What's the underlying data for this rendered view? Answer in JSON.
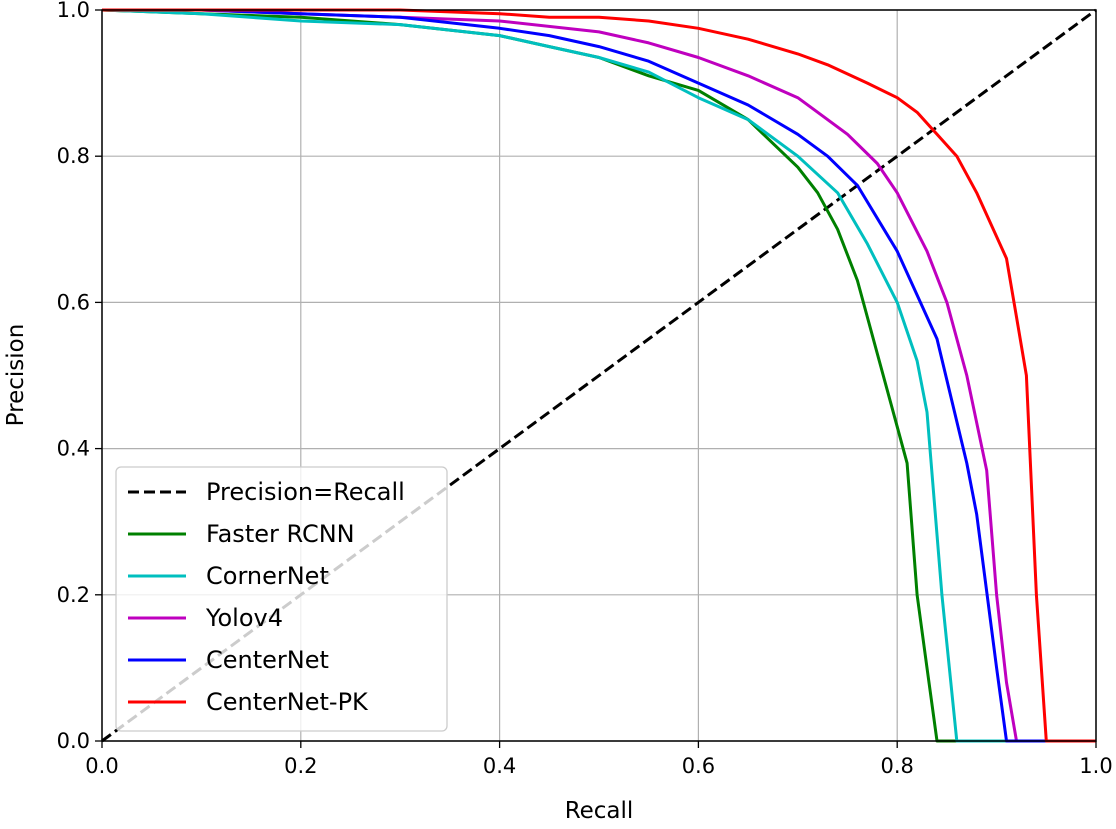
{
  "chart_data": {
    "type": "line",
    "xlabel": "Recall",
    "ylabel": "Precision",
    "xlim": [
      0.0,
      1.0
    ],
    "ylim": [
      0.0,
      1.0
    ],
    "xticks": [
      "0.0",
      "0.2",
      "0.4",
      "0.6",
      "0.8",
      "1.0"
    ],
    "yticks": [
      "0.0",
      "0.2",
      "0.4",
      "0.6",
      "0.8",
      "1.0"
    ],
    "grid": true,
    "legend_position": "lower-left",
    "series": [
      {
        "name": "Precision=Recall",
        "color": "#000000",
        "style": "dashed",
        "x": [
          0.0,
          1.0
        ],
        "y": [
          0.0,
          1.0
        ]
      },
      {
        "name": "Faster RCNN",
        "color": "#008000",
        "style": "solid",
        "x": [
          0.0,
          0.1,
          0.2,
          0.3,
          0.4,
          0.45,
          0.5,
          0.55,
          0.6,
          0.65,
          0.7,
          0.72,
          0.74,
          0.76,
          0.78,
          0.8,
          0.81,
          0.82,
          0.83,
          0.84,
          0.85,
          1.0
        ],
        "y": [
          1.0,
          0.995,
          0.99,
          0.98,
          0.965,
          0.95,
          0.935,
          0.91,
          0.89,
          0.85,
          0.785,
          0.75,
          0.7,
          0.63,
          0.53,
          0.43,
          0.38,
          0.2,
          0.1,
          0.0,
          0.0,
          0.0
        ]
      },
      {
        "name": "CornerNet",
        "color": "#00bfbf",
        "style": "solid",
        "x": [
          0.0,
          0.1,
          0.2,
          0.3,
          0.4,
          0.45,
          0.5,
          0.55,
          0.6,
          0.65,
          0.7,
          0.74,
          0.77,
          0.8,
          0.82,
          0.83,
          0.845,
          0.86,
          1.0
        ],
        "y": [
          1.0,
          0.995,
          0.985,
          0.98,
          0.965,
          0.95,
          0.935,
          0.915,
          0.88,
          0.85,
          0.8,
          0.75,
          0.68,
          0.6,
          0.52,
          0.45,
          0.2,
          0.0,
          0.0
        ]
      },
      {
        "name": "Yolov4",
        "color": "#bf00bf",
        "style": "solid",
        "x": [
          0.0,
          0.1,
          0.2,
          0.3,
          0.4,
          0.5,
          0.55,
          0.6,
          0.65,
          0.7,
          0.72,
          0.75,
          0.78,
          0.8,
          0.83,
          0.85,
          0.87,
          0.89,
          0.9,
          0.91,
          0.92,
          1.0
        ],
        "y": [
          1.0,
          1.0,
          0.995,
          0.99,
          0.985,
          0.97,
          0.955,
          0.935,
          0.91,
          0.88,
          0.86,
          0.83,
          0.79,
          0.75,
          0.67,
          0.6,
          0.5,
          0.37,
          0.2,
          0.08,
          0.0,
          0.0
        ]
      },
      {
        "name": "CenterNet",
        "color": "#0000ff",
        "style": "solid",
        "x": [
          0.0,
          0.1,
          0.2,
          0.3,
          0.4,
          0.45,
          0.5,
          0.55,
          0.6,
          0.65,
          0.7,
          0.73,
          0.76,
          0.8,
          0.84,
          0.87,
          0.88,
          0.9,
          0.91,
          1.0
        ],
        "y": [
          1.0,
          1.0,
          0.995,
          0.99,
          0.975,
          0.965,
          0.95,
          0.93,
          0.9,
          0.87,
          0.83,
          0.8,
          0.76,
          0.67,
          0.55,
          0.38,
          0.31,
          0.1,
          0.0,
          0.0
        ]
      },
      {
        "name": "CenterNet-PK",
        "color": "#ff0000",
        "style": "solid",
        "x": [
          0.0,
          0.1,
          0.2,
          0.3,
          0.4,
          0.45,
          0.5,
          0.55,
          0.6,
          0.65,
          0.7,
          0.73,
          0.77,
          0.8,
          0.82,
          0.84,
          0.86,
          0.88,
          0.9,
          0.91,
          0.92,
          0.93,
          0.94,
          0.95,
          1.0
        ],
        "y": [
          1.0,
          1.0,
          1.0,
          1.0,
          0.995,
          0.99,
          0.99,
          0.985,
          0.975,
          0.96,
          0.94,
          0.925,
          0.9,
          0.88,
          0.86,
          0.83,
          0.8,
          0.75,
          0.69,
          0.66,
          0.58,
          0.5,
          0.2,
          0.0,
          0.0
        ]
      }
    ]
  }
}
